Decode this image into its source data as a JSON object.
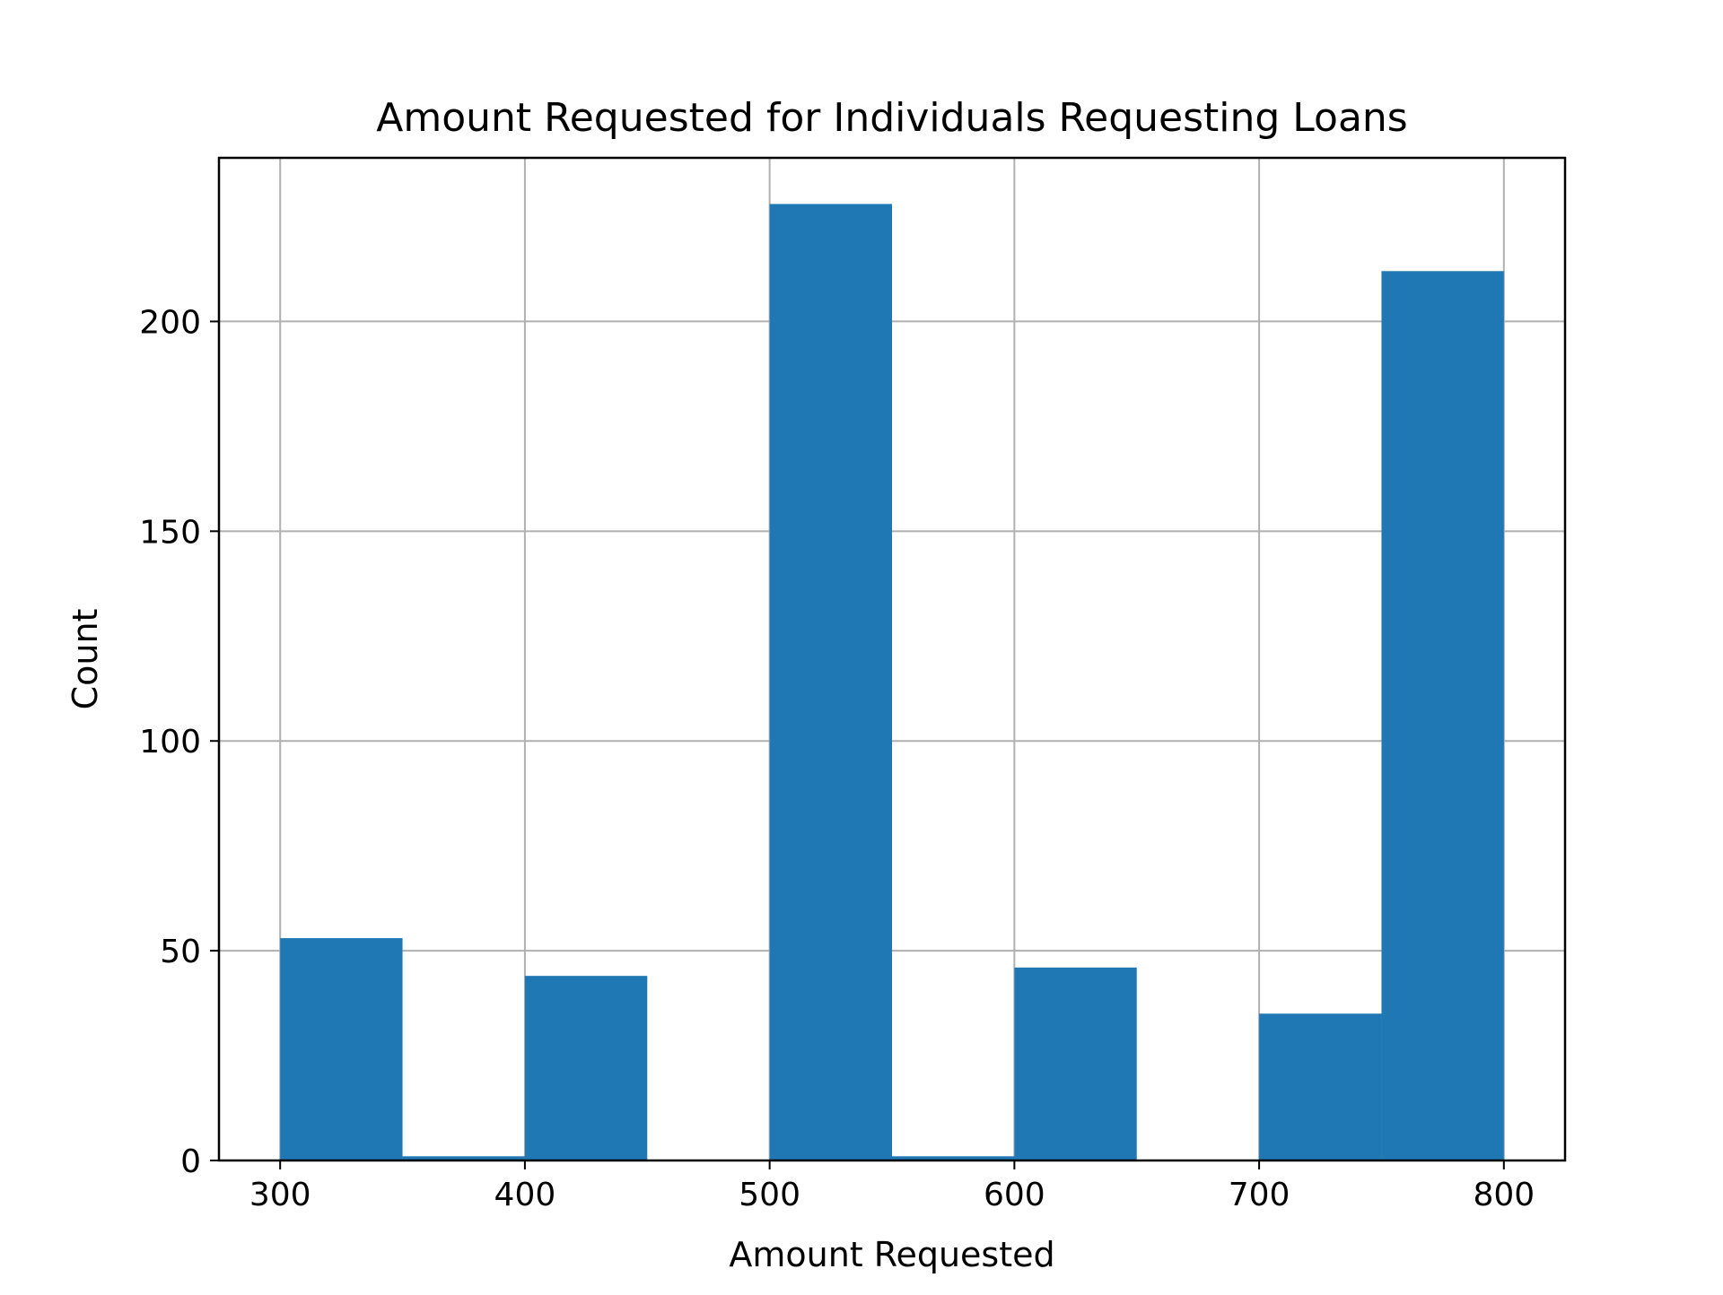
{
  "chart_data": {
    "type": "bar",
    "title": "Amount Requested for Individuals Requesting Loans",
    "xlabel": "Amount Requested",
    "ylabel": "Count",
    "bins": [
      {
        "start": 300,
        "end": 350,
        "count": 53
      },
      {
        "start": 350,
        "end": 400,
        "count": 1
      },
      {
        "start": 400,
        "end": 450,
        "count": 44
      },
      {
        "start": 450,
        "end": 500,
        "count": 0
      },
      {
        "start": 500,
        "end": 550,
        "count": 228
      },
      {
        "start": 550,
        "end": 600,
        "count": 1
      },
      {
        "start": 600,
        "end": 650,
        "count": 46
      },
      {
        "start": 650,
        "end": 700,
        "count": 0
      },
      {
        "start": 700,
        "end": 750,
        "count": 35
      },
      {
        "start": 750,
        "end": 800,
        "count": 212
      }
    ],
    "xlim": [
      275,
      825
    ],
    "ylim": [
      0,
      239
    ],
    "xticks": [
      "300",
      "400",
      "500",
      "600",
      "700",
      "800"
    ],
    "yticks": [
      "0",
      "50",
      "100",
      "150",
      "200"
    ],
    "grid": true,
    "bar_color": "#1f77b4"
  }
}
